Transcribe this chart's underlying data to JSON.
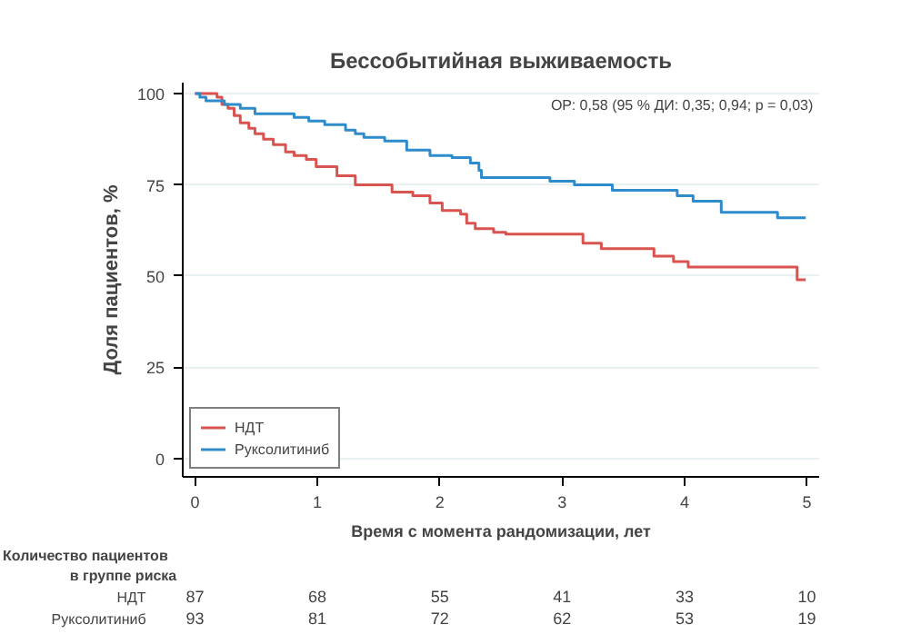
{
  "chart_data": {
    "type": "step",
    "title": "Бессобытийная выживаемость",
    "xlabel": "Время с момента рандомизации, лет",
    "ylabel": "Доля пациентов, %",
    "annotations": [
      "ОР: 0,58 (95 % ДИ: 0,35; 0,94; p = 0,03)",
      "Количество пациентов",
      "в группе риска",
      "НДТ",
      "87",
      "68",
      "55",
      "41",
      "33",
      "10",
      "Руксолитиниб",
      "93",
      "81",
      "72",
      "62",
      "53",
      "19"
    ],
    "series": [
      {
        "name": "НДТ",
        "color": "#d9534f",
        "x": [
          0,
          0.18,
          0.22,
          0.27,
          0.32,
          0.37,
          0.44,
          0.49,
          0.56,
          0.64,
          0.74,
          0.81,
          0.91,
          0.99,
          1.16,
          1.31,
          1.61,
          1.78,
          1.92,
          2.02,
          2.17,
          2.22,
          2.29,
          2.44,
          2.54,
          3.17,
          3.32,
          3.75,
          3.91,
          4.03,
          4.92,
          4.99
        ],
        "values": [
          100,
          99,
          97,
          96,
          94,
          92,
          90.5,
          89,
          87.5,
          86,
          84,
          83,
          82,
          80,
          77.5,
          75,
          73,
          72,
          70,
          68,
          67,
          64.5,
          63,
          62,
          61.5,
          59,
          57.5,
          55.5,
          54,
          52.5,
          49,
          49
        ]
      },
      {
        "name": "Руксолитиниб",
        "color": "#2e8bcc",
        "x": [
          0,
          0.04,
          0.09,
          0.24,
          0.37,
          0.49,
          0.81,
          0.93,
          1.06,
          1.23,
          1.31,
          1.38,
          1.55,
          1.73,
          1.92,
          2.1,
          2.25,
          2.32,
          2.34,
          2.9,
          3.1,
          3.41,
          3.94,
          4.07,
          4.3,
          4.76,
          4.99
        ],
        "values": [
          100,
          99,
          98,
          97,
          96,
          94.5,
          93.5,
          92.5,
          91.5,
          90,
          89,
          88,
          87,
          84.5,
          83,
          82.5,
          81,
          79,
          77,
          76,
          75,
          73.5,
          72,
          70.5,
          67.5,
          66,
          66
        ]
      }
    ],
    "xlim": [
      -0.1,
      5.1
    ],
    "ylim": [
      -5,
      103
    ],
    "xticks": [
      0,
      1,
      2,
      3,
      4,
      5
    ],
    "yticks": [
      0,
      25,
      50,
      75,
      100
    ],
    "grid": "y",
    "legend": "bottom left",
    "line_style": "solid"
  }
}
